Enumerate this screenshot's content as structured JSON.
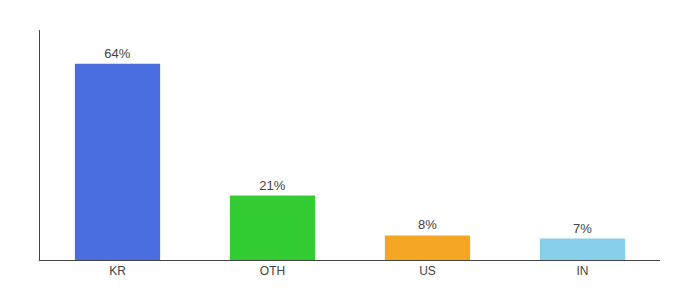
{
  "chart_data": {
    "type": "bar",
    "categories": [
      "KR",
      "OTH",
      "US",
      "IN"
    ],
    "values": [
      64,
      21,
      8,
      7
    ],
    "value_labels": [
      "64%",
      "21%",
      "8%",
      "7%"
    ],
    "colors": [
      "#4a6ee0",
      "#33cc33",
      "#f5a623",
      "#87ceeb"
    ],
    "ylim": [
      0,
      75
    ],
    "grid": false,
    "data_labels": true,
    "tick_labels": "x"
  }
}
